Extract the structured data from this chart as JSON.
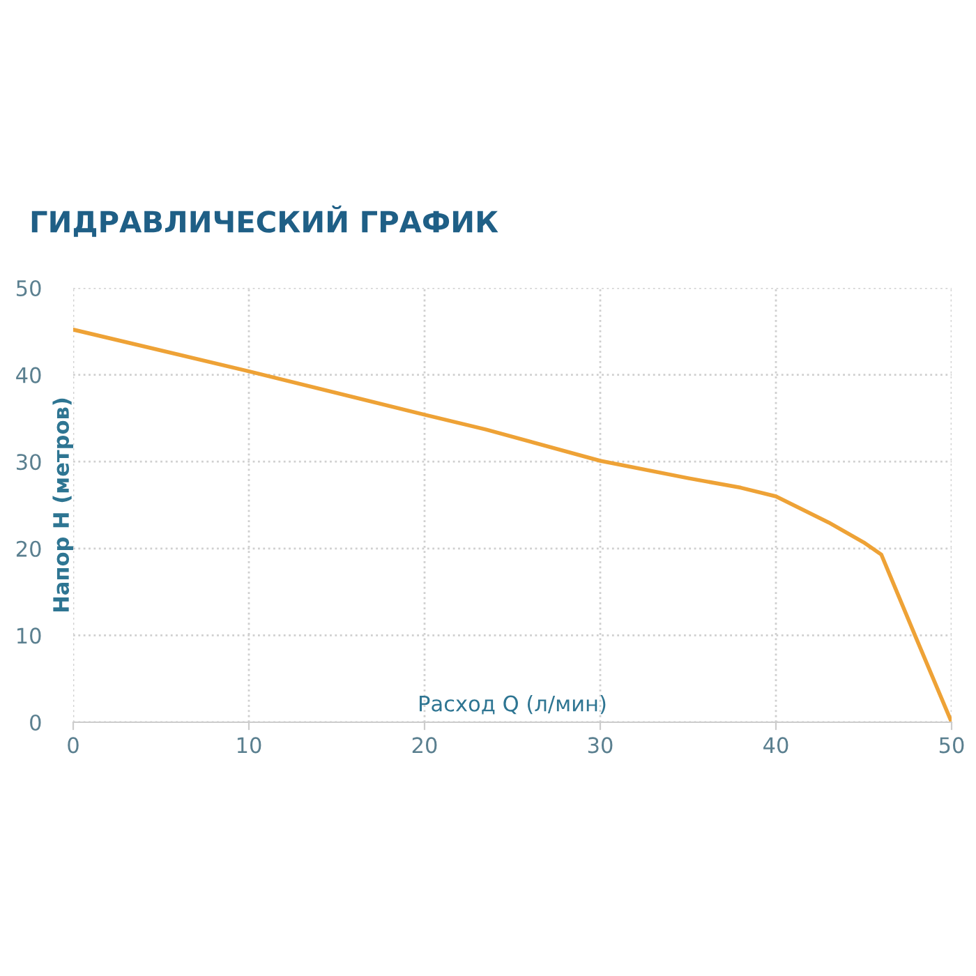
{
  "chart_data": {
    "type": "line",
    "title": "ГИДРАВЛИЧЕСКИЙ ГРАФИК",
    "xlabel": "Расход Q (л/мин)",
    "ylabel": "Напор H (метров)",
    "series": [
      {
        "color": "#eea236",
        "x": [
          0,
          10,
          20,
          23.5,
          30,
          35,
          38,
          40,
          43,
          45,
          46,
          48,
          50
        ],
        "values": [
          45.2,
          40.4,
          35.4,
          33.7,
          30.1,
          28.1,
          27,
          26,
          23,
          20.7,
          19.3,
          9.6,
          0
        ]
      }
    ],
    "xlim": [
      0,
      50
    ],
    "ylim": [
      0,
      50
    ],
    "xticks": [
      0,
      10,
      20,
      30,
      40,
      50
    ],
    "yticks": [
      0,
      10,
      20,
      30,
      40,
      50
    ],
    "grid": true,
    "line_style": "solid",
    "marker": "none"
  }
}
